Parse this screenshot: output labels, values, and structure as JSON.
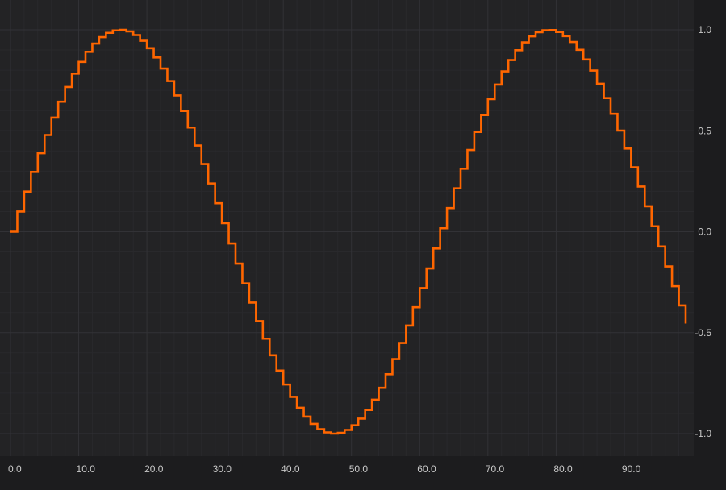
{
  "chart_data": {
    "type": "line",
    "line_style": "step",
    "title": "",
    "xlabel": "",
    "ylabel": "",
    "xlim": [
      0,
      99
    ],
    "ylim": [
      -1,
      1
    ],
    "x_ticks": [
      0,
      10,
      20,
      30,
      40,
      50,
      60,
      70,
      80,
      90
    ],
    "x_tick_labels": [
      "0.0",
      "10.0",
      "20.0",
      "30.0",
      "40.0",
      "50.0",
      "60.0",
      "70.0",
      "80.0",
      "90.0"
    ],
    "y_ticks": [
      1,
      0.5,
      0,
      -0.5,
      -1
    ],
    "y_tick_labels": [
      "1.0",
      "0.5",
      "0.0",
      "-0.5",
      "-1.0"
    ],
    "y_axis_position": "right",
    "grid": true,
    "series": [
      {
        "x_start": 0,
        "x_step": 1,
        "values": [
          0.0,
          0.1,
          0.199,
          0.296,
          0.389,
          0.479,
          0.565,
          0.644,
          0.717,
          0.783,
          0.841,
          0.891,
          0.932,
          0.964,
          0.985,
          0.997,
          1.0,
          0.992,
          0.974,
          0.946,
          0.909,
          0.863,
          0.808,
          0.746,
          0.675,
          0.598,
          0.516,
          0.427,
          0.335,
          0.239,
          0.141,
          0.042,
          -0.058,
          -0.158,
          -0.256,
          -0.351,
          -0.443,
          -0.53,
          -0.612,
          -0.688,
          -0.757,
          -0.818,
          -0.872,
          -0.916,
          -0.952,
          -0.978,
          -0.994,
          -1.0,
          -0.996,
          -0.982,
          -0.959,
          -0.926,
          -0.883,
          -0.832,
          -0.773,
          -0.706,
          -0.631,
          -0.551,
          -0.465,
          -0.374,
          -0.279,
          -0.182,
          -0.083,
          0.017,
          0.117,
          0.215,
          0.312,
          0.405,
          0.494,
          0.578,
          0.657,
          0.729,
          0.794,
          0.85,
          0.899,
          0.938,
          0.968,
          0.988,
          0.998,
          0.999,
          0.989,
          0.969,
          0.94,
          0.901,
          0.853,
          0.798,
          0.733,
          0.662,
          0.584,
          0.501,
          0.412,
          0.319,
          0.224,
          0.126,
          0.027,
          -0.073,
          -0.172,
          -0.27,
          -0.365,
          -0.455
        ]
      }
    ]
  },
  "colors": {
    "background": "#1c1c1e",
    "plot_background": "#232325",
    "grid_major": "#323236",
    "grid_minor": "#29292c",
    "tick_label": "#c8c8c8",
    "series_line": "#ff6600"
  }
}
